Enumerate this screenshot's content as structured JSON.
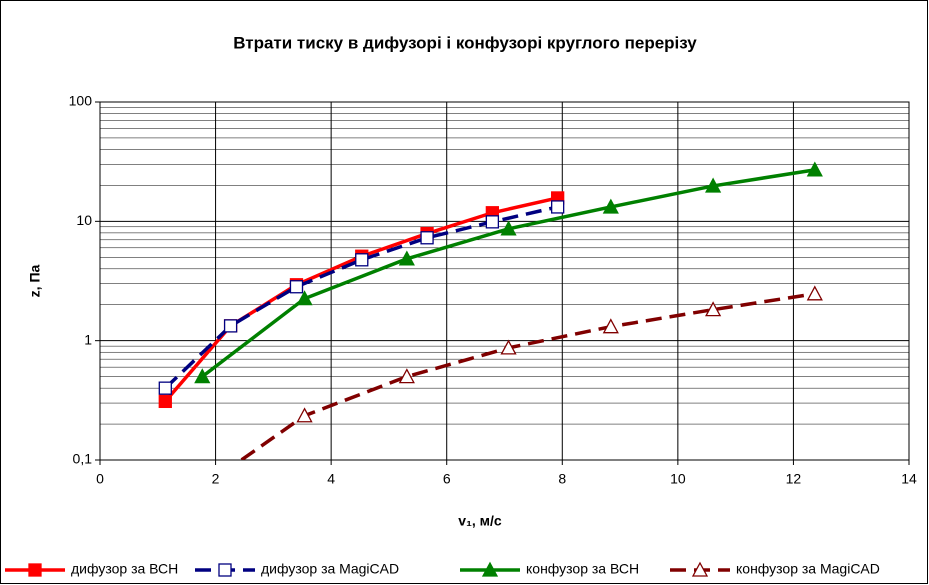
{
  "chart_data": {
    "type": "line",
    "title": "Втрати тиску в дифузорі і конфузорі круглого перерізу",
    "x_label": "v₁, м/с",
    "y_label": "z, Па",
    "xlim": [
      0,
      14
    ],
    "xticks": [
      0,
      2,
      4,
      6,
      8,
      10,
      12,
      14
    ],
    "ylim": [
      0.1,
      100
    ],
    "yticks": [
      {
        "value": 0.1,
        "label": "0,1"
      },
      1,
      10,
      100
    ],
    "log_y": true,
    "grid": true,
    "legend": "bottom",
    "series": [
      {
        "name": "дифузор за ВСН",
        "color": "#ff0000",
        "marker": "square",
        "filled": true,
        "dashed": false,
        "x": [
          1.13,
          2.26,
          3.4,
          4.53,
          5.66,
          6.79,
          7.92
        ],
        "values": [
          0.31,
          1.33,
          2.94,
          5.1,
          7.9,
          11.8,
          15.7
        ]
      },
      {
        "name": "дифузор за MagiCAD",
        "color": "#000080",
        "marker": "square",
        "filled": false,
        "dashed": true,
        "x": [
          1.13,
          2.26,
          3.4,
          4.53,
          5.66,
          6.79,
          7.92
        ],
        "values": [
          0.4,
          1.33,
          2.83,
          4.76,
          7.28,
          9.9,
          13.2
        ]
      },
      {
        "name": "конфузор за ВСН",
        "color": "#008000",
        "marker": "triangle",
        "filled": true,
        "dashed": false,
        "x": [
          1.77,
          3.54,
          5.31,
          7.07,
          8.84,
          10.61,
          12.37
        ],
        "values": [
          0.5,
          2.25,
          4.85,
          8.65,
          13.2,
          19.8,
          27
        ]
      },
      {
        "name": "конфузор за MagiCAD",
        "color": "#800000",
        "marker": "triangle",
        "filled": false,
        "dashed": true,
        "x": [
          1.77,
          3.54,
          5.31,
          7.07,
          8.84,
          10.61,
          12.37
        ],
        "values": [
          0.059,
          0.235,
          0.5,
          0.87,
          1.31,
          1.82,
          2.47
        ]
      }
    ]
  }
}
